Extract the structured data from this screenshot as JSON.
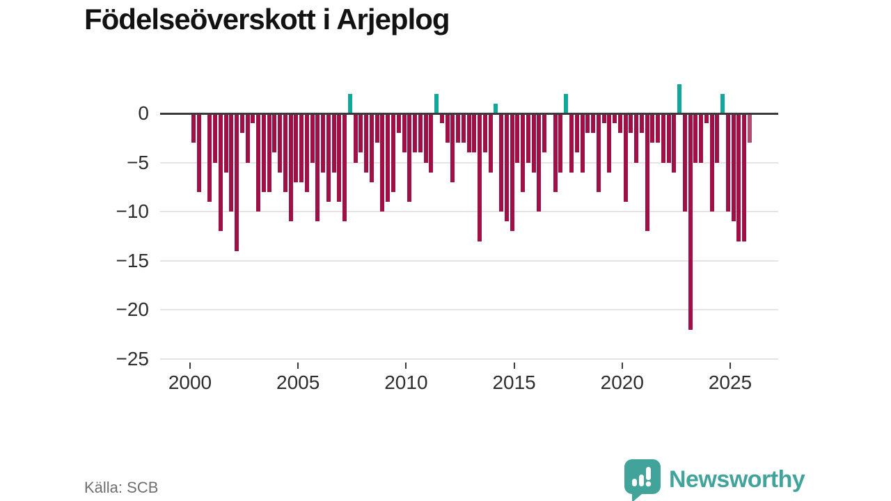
{
  "title": "Födelseöverskott i Arjeplog",
  "source_label": "Källa: SCB",
  "brand": {
    "name": "Newsworthy",
    "color": "#42a39a"
  },
  "chart_data": {
    "type": "bar",
    "title": "Födelseöverskott i Arjeplog",
    "frequency": "quarterly",
    "start_year": 2000,
    "x": [
      "2000Q1",
      "2000Q2",
      "2000Q3",
      "2000Q4",
      "2001Q1",
      "2001Q2",
      "2001Q3",
      "2001Q4",
      "2002Q1",
      "2002Q2",
      "2002Q3",
      "2002Q4",
      "2003Q1",
      "2003Q2",
      "2003Q3",
      "2003Q4",
      "2004Q1",
      "2004Q2",
      "2004Q3",
      "2004Q4",
      "2005Q1",
      "2005Q2",
      "2005Q3",
      "2005Q4",
      "2006Q1",
      "2006Q2",
      "2006Q3",
      "2006Q4",
      "2007Q1",
      "2007Q2",
      "2007Q3",
      "2007Q4",
      "2008Q1",
      "2008Q2",
      "2008Q3",
      "2008Q4",
      "2009Q1",
      "2009Q2",
      "2009Q3",
      "2009Q4",
      "2010Q1",
      "2010Q2",
      "2010Q3",
      "2010Q4",
      "2011Q1",
      "2011Q2",
      "2011Q3",
      "2011Q4",
      "2012Q1",
      "2012Q2",
      "2012Q3",
      "2012Q4",
      "2013Q1",
      "2013Q2",
      "2013Q3",
      "2013Q4",
      "2014Q1",
      "2014Q2",
      "2014Q3",
      "2014Q4",
      "2015Q1",
      "2015Q2",
      "2015Q3",
      "2015Q4",
      "2016Q1",
      "2016Q2",
      "2016Q3",
      "2016Q4",
      "2017Q1",
      "2017Q2",
      "2017Q3",
      "2017Q4",
      "2018Q1",
      "2018Q2",
      "2018Q3",
      "2018Q4",
      "2019Q1",
      "2019Q2",
      "2019Q3",
      "2019Q4",
      "2020Q1",
      "2020Q2",
      "2020Q3",
      "2020Q4",
      "2021Q1",
      "2021Q2",
      "2021Q3",
      "2021Q4",
      "2022Q1",
      "2022Q2",
      "2022Q3",
      "2022Q4",
      "2023Q1",
      "2023Q2",
      "2023Q3",
      "2023Q4",
      "2024Q1",
      "2024Q2",
      "2024Q3",
      "2024Q4",
      "2025Q1",
      "2025Q2",
      "2025Q3",
      "2025Q4"
    ],
    "values": [
      -3,
      -8,
      0,
      -9,
      -5,
      -12,
      -6,
      -10,
      -14,
      -2,
      -5,
      -1,
      -10,
      -8,
      -8,
      -4,
      -6,
      -8,
      -11,
      -7,
      -7,
      -8,
      -5,
      -11,
      -6,
      -9,
      -6,
      -9,
      -11,
      2,
      -5,
      -4,
      -6,
      -7,
      -3,
      -10,
      -9,
      -8,
      -2,
      -4,
      -9,
      -4,
      -4,
      -5,
      -6,
      2,
      -1,
      -3,
      -7,
      -3,
      -3,
      -4,
      -4,
      -13,
      -4,
      -6,
      1,
      -10,
      -11,
      -12,
      -5,
      -8,
      -5,
      -6,
      -10,
      -4,
      0,
      -8,
      -6,
      2,
      -6,
      -4,
      -6,
      -2,
      -2,
      -8,
      -1,
      -6,
      -1,
      -2,
      -9,
      -2,
      -5,
      -2,
      -12,
      -3,
      -3,
      -5,
      -5,
      -6,
      3,
      -10,
      -22,
      -5,
      -5,
      -1,
      -10,
      -5,
      2,
      -10,
      -11,
      -13,
      -13,
      -3
    ],
    "preliminary_last_count": 1,
    "y_ticks": [
      0,
      -5,
      -10,
      -15,
      -20,
      -25
    ],
    "y_tick_labels": [
      "0",
      "−5",
      "−10",
      "−15",
      "−20",
      "−25"
    ],
    "x_tick_years": [
      2000,
      2005,
      2010,
      2015,
      2020,
      2025
    ],
    "x_tick_labels": [
      "2000",
      "2005",
      "2010",
      "2015",
      "2020",
      "2025"
    ],
    "ylim": [
      -25,
      3
    ],
    "grid": true,
    "legend": false,
    "colors": {
      "negative": "#9e1046",
      "positive": "#13a69b",
      "preliminary": "#b04b71"
    }
  }
}
